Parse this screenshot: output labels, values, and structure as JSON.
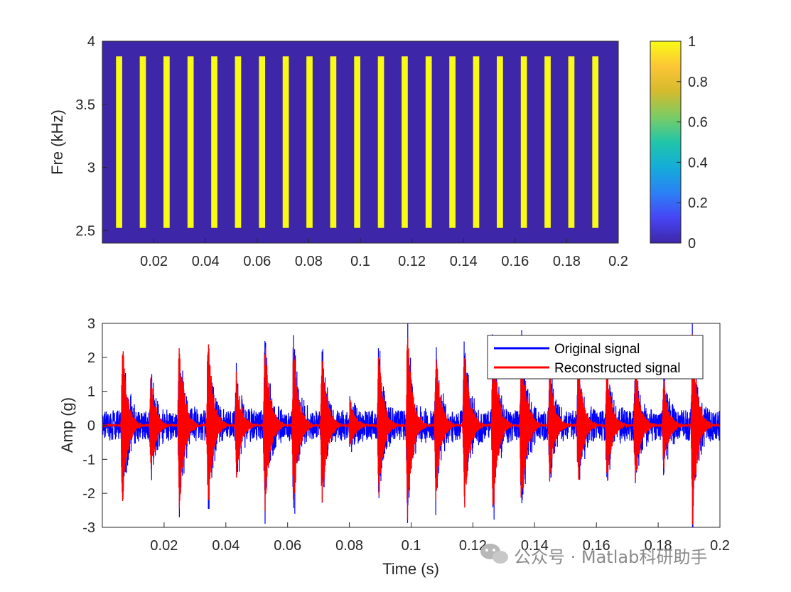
{
  "chart_data": [
    {
      "type": "heatmap",
      "ylabel": "Fre (kHz)",
      "xlabel": "",
      "xlim": [
        0,
        0.2
      ],
      "ylim": [
        2.4,
        4.0
      ],
      "x_ticks": [
        "0.02",
        "0.04",
        "0.06",
        "0.08",
        "0.1",
        "0.12",
        "0.14",
        "0.16",
        "0.18",
        "0.2"
      ],
      "y_ticks": [
        "2.5",
        "3",
        "3.5",
        "4"
      ],
      "band_freq_range": [
        2.52,
        3.88
      ],
      "band_value": 1,
      "background_value": 0,
      "band_centers": [
        0.0065,
        0.0157,
        0.0249,
        0.0342,
        0.0434,
        0.0526,
        0.0619,
        0.0711,
        0.0803,
        0.0895,
        0.0988,
        0.108,
        0.1172,
        0.1265,
        0.1357,
        0.1449,
        0.1541,
        0.1634,
        0.1726,
        0.1818,
        0.1911
      ],
      "band_width": 0.0024,
      "colorbar": {
        "range": [
          0,
          1
        ],
        "ticks": [
          "0",
          "0.2",
          "0.4",
          "0.6",
          "0.8",
          "1"
        ],
        "colors": [
          "#3e26a8",
          "#4745f5",
          "#2b81f6",
          "#14acd9",
          "#21c5a9",
          "#7acc64",
          "#d4bb2d",
          "#fcc536",
          "#f9fb15"
        ]
      },
      "colors": {
        "low": "#3e26a8",
        "high": "#f9fb15"
      }
    },
    {
      "type": "line",
      "xlabel": "Time (s)",
      "ylabel": "Amp (g)",
      "xlim": [
        0,
        0.2
      ],
      "ylim": [
        -3,
        3
      ],
      "x_ticks": [
        "0.02",
        "0.04",
        "0.06",
        "0.08",
        "0.1",
        "0.12",
        "0.14",
        "0.16",
        "0.18",
        "0.2"
      ],
      "y_ticks": [
        "-3",
        "-2",
        "-1",
        "0",
        "1",
        "2",
        "3"
      ],
      "legend_position": "top-right",
      "series": [
        {
          "name": "Original signal",
          "color": "#0000ff",
          "noise_amp": 0.45
        },
        {
          "name": "Reconstructed signal",
          "color": "#ff0000",
          "noise_amp": 0.03
        }
      ],
      "impulses": [
        {
          "t": 0.0065,
          "amp": 2.6
        },
        {
          "t": 0.0157,
          "amp": 1.6
        },
        {
          "t": 0.0249,
          "amp": 2.7
        },
        {
          "t": 0.0342,
          "amp": 2.8
        },
        {
          "t": 0.0434,
          "amp": 1.7
        },
        {
          "t": 0.0526,
          "amp": 2.8
        },
        {
          "t": 0.0619,
          "amp": 2.7
        },
        {
          "t": 0.0711,
          "amp": 2.6
        },
        {
          "t": 0.0803,
          "amp": 0.8
        },
        {
          "t": 0.0895,
          "amp": 2.3
        },
        {
          "t": 0.0988,
          "amp": 3.0
        },
        {
          "t": 0.108,
          "amp": 2.3
        },
        {
          "t": 0.1172,
          "amp": 2.7
        },
        {
          "t": 0.1265,
          "amp": 2.9
        },
        {
          "t": 0.1357,
          "amp": 3.0
        },
        {
          "t": 0.1449,
          "amp": 1.8
        },
        {
          "t": 0.1541,
          "amp": 2.2
        },
        {
          "t": 0.1634,
          "amp": 1.9
        },
        {
          "t": 0.1726,
          "amp": 2.0
        },
        {
          "t": 0.1818,
          "amp": 1.5
        },
        {
          "t": 0.1911,
          "amp": 3.0
        }
      ]
    }
  ],
  "watermark": "公众号 · Matlab科研助手"
}
